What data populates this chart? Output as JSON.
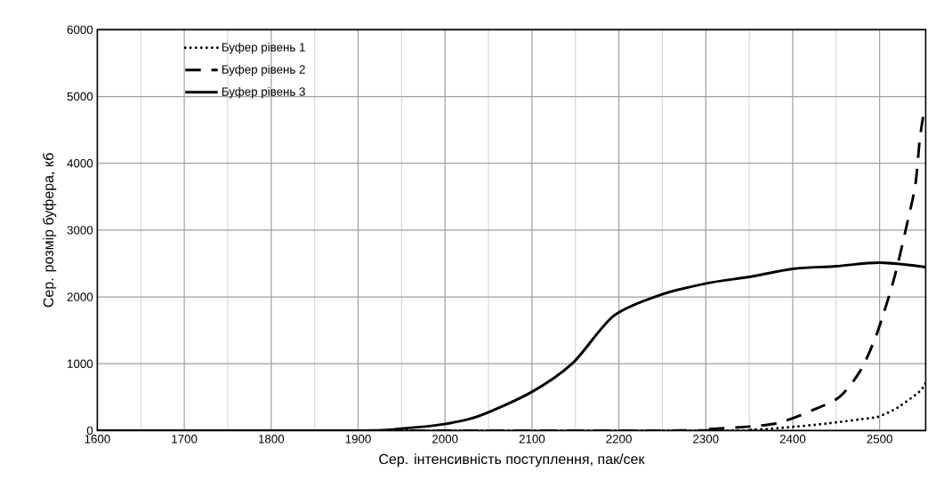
{
  "chart_data": {
    "type": "line",
    "xlabel": "Сер. інтенсивність поступлення, пак/сек",
    "ylabel": "Сер. розмір буфера, кб",
    "xlim": [
      1600,
      2553
    ],
    "xticks": [
      1600,
      1700,
      1800,
      1900,
      2000,
      2100,
      2200,
      2300,
      2400,
      2500
    ],
    "ylim": [
      0,
      6000
    ],
    "yticks": [
      0,
      1000,
      2000,
      3000,
      4000,
      5000,
      6000
    ],
    "grid": true,
    "legend": "top left",
    "marker": "none",
    "series": [
      {
        "name": "Буфер рівень 1",
        "color": "#000000",
        "line_style": "dotted",
        "x": [
          1600,
          2300,
          2350,
          2388,
          2440,
          2489,
          2500,
          2521,
          2546,
          2553
        ],
        "values": [
          0,
          0,
          10,
          40,
          106,
          186,
          213,
          346,
          585,
          718
        ]
      },
      {
        "name": "Буфер рівень 2",
        "color": "#000000",
        "line_style": "dashed",
        "x": [
          1600,
          2250,
          2300,
          2350,
          2385,
          2423,
          2454,
          2477,
          2493,
          2505,
          2518,
          2530,
          2541,
          2546,
          2550
        ],
        "values": [
          0,
          0,
          20,
          60,
          120,
          306,
          505,
          878,
          1317,
          1769,
          2340,
          3006,
          3670,
          4336,
          4695
        ]
      },
      {
        "name": "Буфер рівень 3",
        "color": "#000000",
        "line_style": "solid",
        "x": [
          1600,
          1900,
          1950,
          1997,
          2038,
          2099,
          2147,
          2194,
          2249,
          2303,
          2350,
          2400,
          2450,
          2500,
          2553
        ],
        "values": [
          0,
          0,
          30,
          93,
          213,
          572,
          1011,
          1716,
          2035,
          2208,
          2300,
          2420,
          2460,
          2514,
          2447
        ]
      }
    ]
  }
}
